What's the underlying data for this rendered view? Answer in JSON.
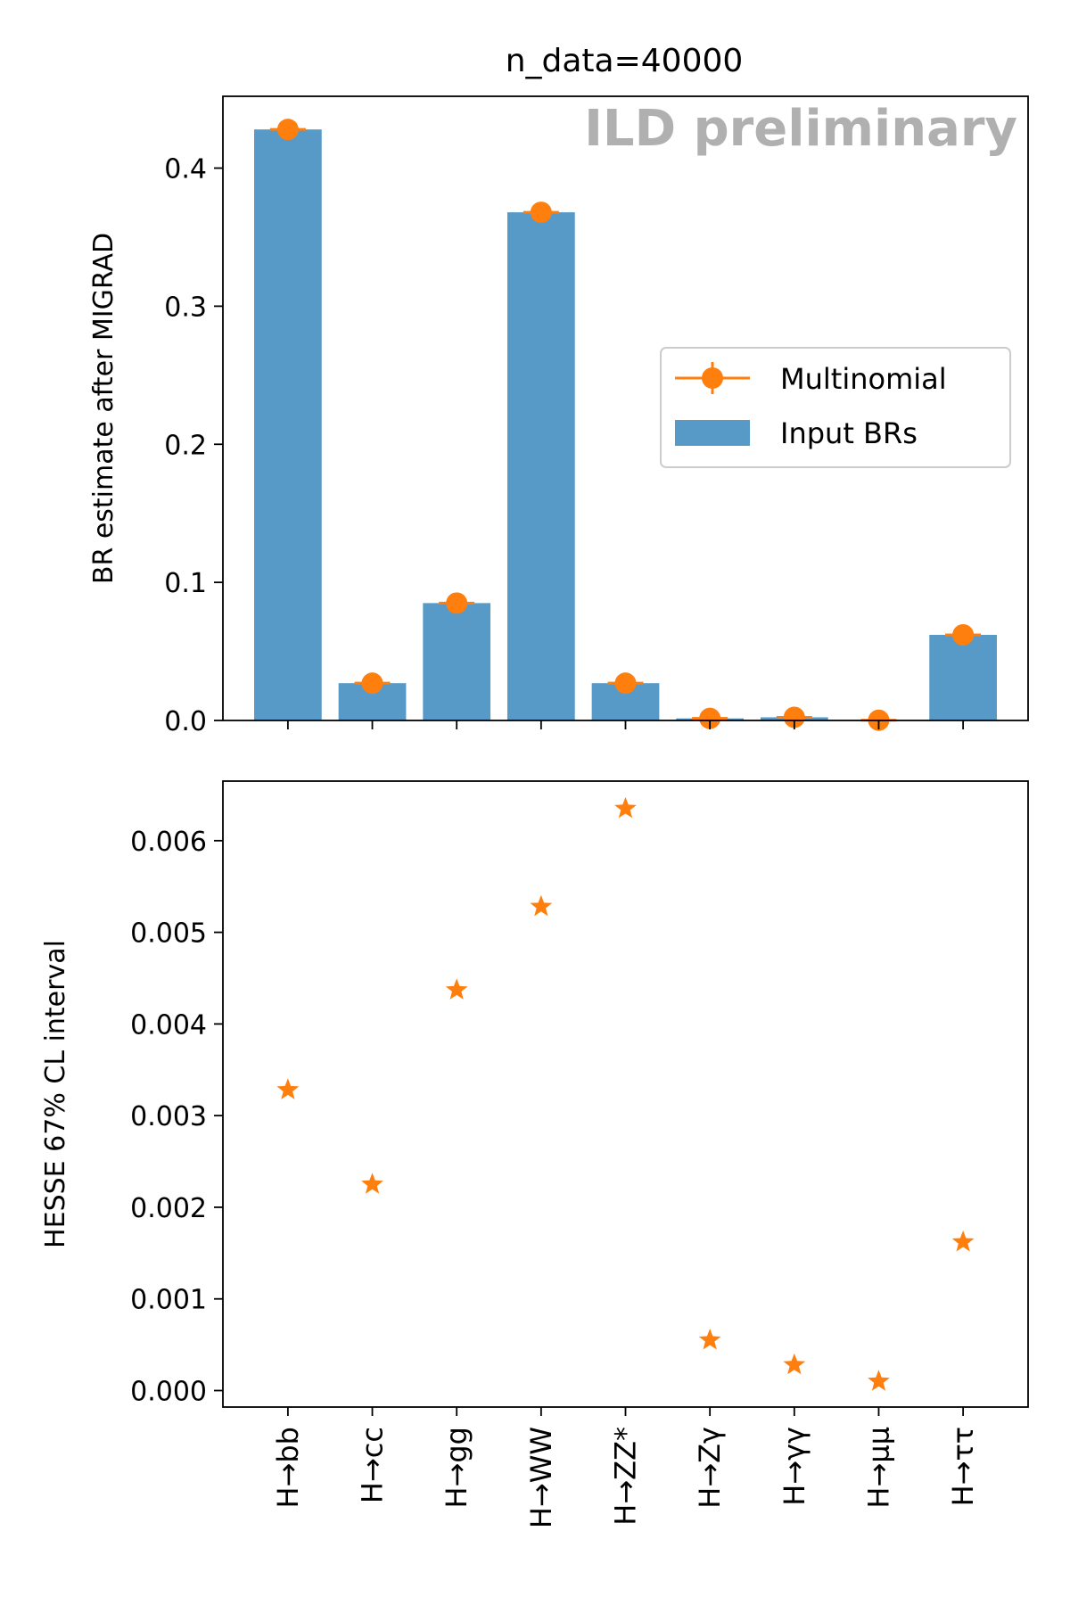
{
  "chart_data": [
    {
      "type": "bar",
      "title": "n_data=40000",
      "watermark": "ILD preliminary",
      "ylabel": "BR estimate after MIGRAD",
      "xlabel": "",
      "ylim": [
        0,
        0.452
      ],
      "yticks": [
        0.0,
        0.1,
        0.2,
        0.3,
        0.4
      ],
      "ytick_labels": [
        "0.0",
        "0.1",
        "0.2",
        "0.3",
        "0.4"
      ],
      "categories": [
        "H→bb",
        "H→cc",
        "H→gg",
        "H→WW",
        "H→ZZ*",
        "H→Zγ",
        "H→γγ",
        "H→μμ",
        "H→ττ"
      ],
      "series": [
        {
          "name": "Input BRs",
          "kind": "bar",
          "color": "#5799c7",
          "values": [
            0.428,
            0.027,
            0.085,
            0.368,
            0.027,
            0.0015,
            0.0023,
            0.0002,
            0.062
          ]
        },
        {
          "name": "Multinomial",
          "kind": "errorbar",
          "color": "#ff7f0e",
          "values": [
            0.428,
            0.027,
            0.085,
            0.368,
            0.027,
            0.0015,
            0.0023,
            0.0002,
            0.062
          ]
        }
      ],
      "legend_position": "center-right",
      "grid": false
    },
    {
      "type": "scatter",
      "ylabel": "HESSE 67% CL interval",
      "xlabel": "",
      "ylim": [
        -0.00018,
        0.00665
      ],
      "yticks": [
        0.0,
        0.001,
        0.002,
        0.003,
        0.004,
        0.005,
        0.006
      ],
      "ytick_labels": [
        "0.000",
        "0.001",
        "0.002",
        "0.003",
        "0.004",
        "0.005",
        "0.006"
      ],
      "categories": [
        "H→bb",
        "H→cc",
        "H→gg",
        "H→WW",
        "H→ZZ*",
        "H→Zγ",
        "H→γγ",
        "H→μμ",
        "H→ττ"
      ],
      "series": [
        {
          "marker": "star",
          "color": "#ff7f0e",
          "values": [
            0.00328,
            0.00225,
            0.00437,
            0.00528,
            0.00635,
            0.00055,
            0.00028,
            0.0001,
            0.00162
          ]
        }
      ],
      "grid": false
    }
  ]
}
